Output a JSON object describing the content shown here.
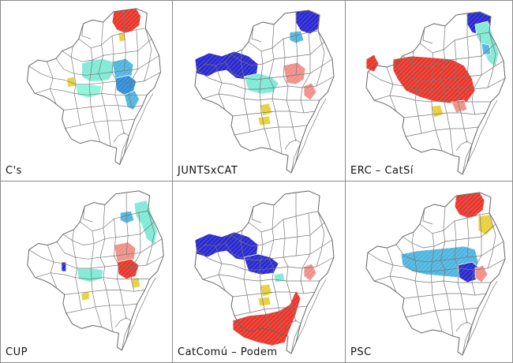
{
  "panels": [
    {
      "label": "C's",
      "patches": [
        {
          "color": "#e8372c",
          "shape": "north"
        },
        {
          "color": "#e9cf3a",
          "shape": "n_small"
        },
        {
          "color": "#80ead6",
          "shape": "center"
        },
        {
          "color": "#4fb6e0",
          "shape": "center_east"
        },
        {
          "color": "#2e8fd8",
          "shape": "eixample_e"
        },
        {
          "color": "#8ff5dc",
          "shape": "sw"
        },
        {
          "color": "#e9cf3a",
          "shape": "yellow_w"
        },
        {
          "color": "#4fb6e0",
          "shape": "coast"
        }
      ]
    },
    {
      "label": "JUNTSxCAT",
      "patches": [
        {
          "color": "#2a2ad0",
          "shape": "west_big"
        },
        {
          "color": "#2a2ad0",
          "shape": "north_top"
        },
        {
          "color": "#4fb6e0",
          "shape": "north_blue"
        },
        {
          "color": "#80ead6",
          "shape": "center_w"
        },
        {
          "color": "#f09088",
          "shape": "center_east"
        },
        {
          "color": "#e9cf3a",
          "shape": "small_y1"
        },
        {
          "color": "#e9cf3a",
          "shape": "south_y"
        },
        {
          "color": "#f09088",
          "shape": "coast_pink"
        }
      ]
    },
    {
      "label": "ERC – CatSí",
      "patches": [
        {
          "color": "#2a2ad0",
          "shape": "north_top"
        },
        {
          "color": "#80ead6",
          "shape": "north_east"
        },
        {
          "color": "#e8372c",
          "shape": "west_small"
        },
        {
          "color": "#e8372c",
          "shape": "center_big"
        },
        {
          "color": "#e9cf3a",
          "shape": "small_y1"
        },
        {
          "color": "#f09088",
          "shape": "south_pink"
        },
        {
          "color": "#4fb6e0",
          "shape": "ne_blue"
        }
      ]
    },
    {
      "label": "CUP",
      "patches": [
        {
          "color": "#80ead6",
          "shape": "north_east"
        },
        {
          "color": "#4fb6e0",
          "shape": "north_blue"
        },
        {
          "color": "#2a2ad0",
          "shape": "tiny_w"
        },
        {
          "color": "#f09088",
          "shape": "center_east"
        },
        {
          "color": "#e8372c",
          "shape": "eixample_e"
        },
        {
          "color": "#e9cf3a",
          "shape": "yellow_e"
        },
        {
          "color": "#80ead6",
          "shape": "sw"
        },
        {
          "color": "#e9cf3a",
          "shape": "south_y2"
        }
      ]
    },
    {
      "label": "CatComú – Podem",
      "patches": [
        {
          "color": "#2a2ad0",
          "shape": "west_big"
        },
        {
          "color": "#2a2ad0",
          "shape": "center_w"
        },
        {
          "color": "#80ead6",
          "shape": "center_small"
        },
        {
          "color": "#e9cf3a",
          "shape": "small_y1"
        },
        {
          "color": "#f09088",
          "shape": "coast_pink"
        },
        {
          "color": "#e9cf3a",
          "shape": "south_y"
        },
        {
          "color": "#e8372c",
          "shape": "zona_franca"
        }
      ]
    },
    {
      "label": "PSC",
      "patches": [
        {
          "color": "#e8372c",
          "shape": "north"
        },
        {
          "color": "#e9cf3a",
          "shape": "north_east_y"
        },
        {
          "color": "#4fb6e0",
          "shape": "center_band"
        },
        {
          "color": "#2a2ad0",
          "shape": "eixample_e"
        },
        {
          "color": "#f09088",
          "shape": "coast_pink"
        }
      ]
    }
  ]
}
